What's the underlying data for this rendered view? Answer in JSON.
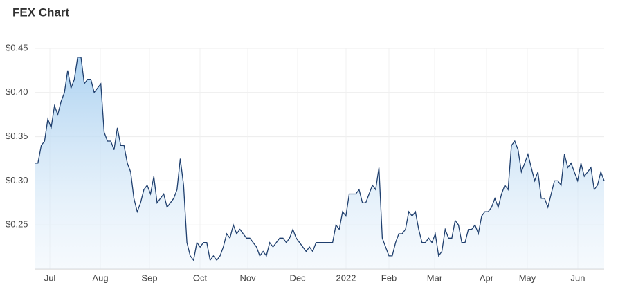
{
  "chart_data": {
    "type": "area",
    "title": "FEX Chart",
    "x_tick_labels": [
      "Jul",
      "Aug",
      "Sep",
      "Oct",
      "Nov",
      "Dec",
      "2022",
      "Feb",
      "Mar",
      "Apr",
      "May",
      "Jun"
    ],
    "color": "#1f3f6e",
    "values": [
      0.32,
      0.32,
      0.34,
      0.345,
      0.37,
      0.36,
      0.385,
      0.375,
      0.39,
      0.4,
      0.425,
      0.405,
      0.415,
      0.44,
      0.44,
      0.41,
      0.415,
      0.415,
      0.4,
      0.405,
      0.41,
      0.355,
      0.345,
      0.345,
      0.335,
      0.36,
      0.34,
      0.34,
      0.32,
      0.31,
      0.28,
      0.265,
      0.275,
      0.29,
      0.295,
      0.285,
      0.305,
      0.275,
      0.28,
      0.285,
      0.27,
      0.275,
      0.28,
      0.29,
      0.325,
      0.295,
      0.23,
      0.215,
      0.21,
      0.23,
      0.225,
      0.23,
      0.23,
      0.21,
      0.215,
      0.21,
      0.215,
      0.225,
      0.24,
      0.235,
      0.25,
      0.24,
      0.245,
      0.24,
      0.235,
      0.235,
      0.23,
      0.225,
      0.215,
      0.22,
      0.215,
      0.23,
      0.225,
      0.23,
      0.235,
      0.235,
      0.23,
      0.235,
      0.245,
      0.235,
      0.23,
      0.225,
      0.22,
      0.225,
      0.22,
      0.23,
      0.23,
      0.23,
      0.23,
      0.23,
      0.23,
      0.25,
      0.245,
      0.265,
      0.26,
      0.285,
      0.285,
      0.285,
      0.29,
      0.275,
      0.275,
      0.285,
      0.295,
      0.29,
      0.315,
      0.235,
      0.225,
      0.215,
      0.215,
      0.23,
      0.24,
      0.24,
      0.245,
      0.265,
      0.26,
      0.265,
      0.245,
      0.23,
      0.23,
      0.235,
      0.23,
      0.24,
      0.215,
      0.22,
      0.245,
      0.235,
      0.235,
      0.255,
      0.25,
      0.23,
      0.23,
      0.245,
      0.245,
      0.25,
      0.24,
      0.26,
      0.265,
      0.265,
      0.27,
      0.28,
      0.27,
      0.285,
      0.295,
      0.29,
      0.34,
      0.345,
      0.335,
      0.31,
      0.32,
      0.33,
      0.315,
      0.3,
      0.31,
      0.28,
      0.28,
      0.27,
      0.285,
      0.3,
      0.3,
      0.295,
      0.33,
      0.315,
      0.32,
      0.31,
      0.3,
      0.32,
      0.305,
      0.31,
      0.315,
      0.29,
      0.295,
      0.31,
      0.3
    ],
    "ylim": [
      0.2,
      0.45
    ],
    "yticks": [
      {
        "value": 0.25,
        "label": "$0.25"
      },
      {
        "value": 0.3,
        "label": "$0.30"
      },
      {
        "value": 0.35,
        "label": "$0.35"
      },
      {
        "value": 0.4,
        "label": "$0.40"
      },
      {
        "value": 0.45,
        "label": "$0.45"
      }
    ],
    "grid": true
  }
}
